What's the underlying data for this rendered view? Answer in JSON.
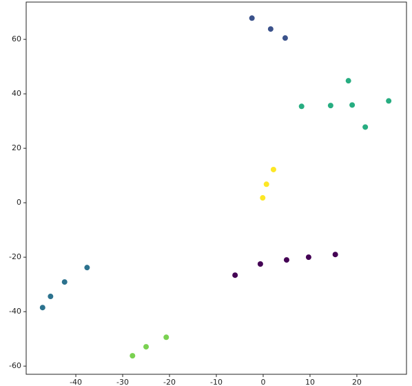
{
  "chart_data": {
    "type": "scatter",
    "xlim": [
      -50.6,
      30.6
    ],
    "ylim": [
      -63,
      73.7
    ],
    "xticks": [
      -40,
      -30,
      -20,
      -10,
      0,
      10,
      20
    ],
    "yticks": [
      -60,
      -40,
      -20,
      0,
      20,
      40,
      60
    ],
    "series": [
      {
        "color": "#440154",
        "x": [
          -6.0,
          -0.6,
          5.0,
          9.7,
          15.4
        ],
        "y": [
          -26.6,
          -22.5,
          -21.0,
          -20.0,
          -19.0
        ]
      },
      {
        "color": "#3b528b",
        "x": [
          -2.4,
          1.6,
          4.7
        ],
        "y": [
          67.8,
          63.8,
          60.5
        ]
      },
      {
        "color": "#2c728e",
        "x": [
          -37.6,
          -42.4,
          -45.4,
          -47.1
        ],
        "y": [
          -23.8,
          -29.1,
          -34.4,
          -38.5
        ]
      },
      {
        "color": "#27ad81",
        "x": [
          8.2,
          14.4,
          18.2,
          19.0,
          21.8,
          26.8
        ],
        "y": [
          35.4,
          35.7,
          44.8,
          35.9,
          27.8,
          37.4
        ]
      },
      {
        "color": "#7ad151",
        "x": [
          -20.7,
          -25.0,
          -27.9
        ],
        "y": [
          -49.4,
          -52.9,
          -56.2
        ]
      },
      {
        "color": "#fde725",
        "x": [
          2.2,
          0.7,
          -0.1
        ],
        "y": [
          12.2,
          6.8,
          1.8
        ]
      }
    ]
  }
}
